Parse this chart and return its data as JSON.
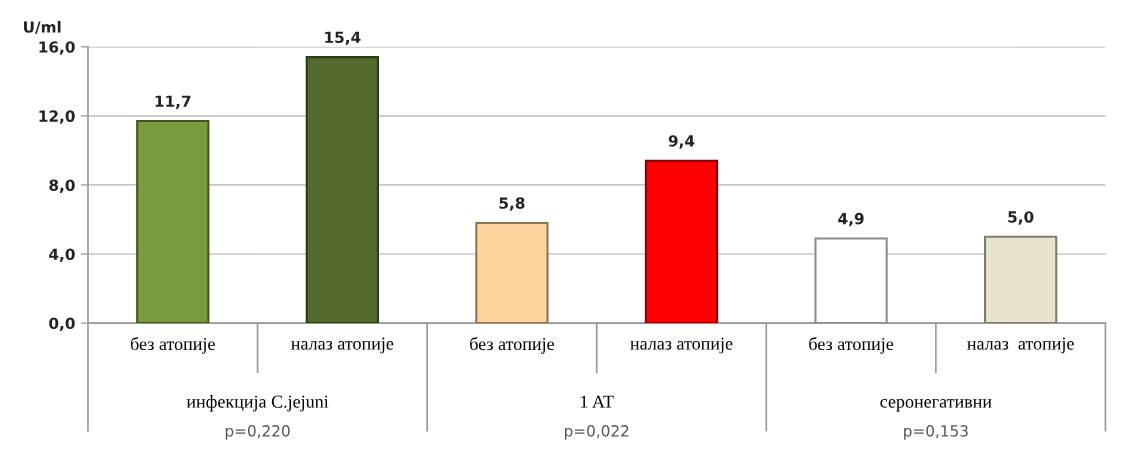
{
  "chart_data": {
    "type": "bar",
    "ylabel": "U/ml",
    "categories": [
      "без атопије",
      "налаз атопије",
      "без атопије",
      "налаз атопије",
      "без атопије",
      "налаз  атопије"
    ],
    "values": [
      11.7,
      15.4,
      5.8,
      9.4,
      4.9,
      5.0
    ],
    "value_labels": [
      "11,7",
      "15,4",
      "5,8",
      "9,4",
      "4,9",
      "5,0"
    ],
    "colors": [
      "#7a9a3e",
      "#546b2c",
      "#fdd49e",
      "#ff0000",
      "#ffffff",
      "#e8e4cc"
    ],
    "ylim": [
      0,
      16
    ],
    "yticks": [
      {
        "value": 0,
        "label": "0,0"
      },
      {
        "value": 4,
        "label": "4,0"
      },
      {
        "value": 8,
        "label": "8,0"
      },
      {
        "value": 12,
        "label": "12,0"
      },
      {
        "value": 16,
        "label": "16,0"
      }
    ],
    "grid": "y",
    "annotations": [
      "инфекција C.jejuni",
      "p=0,220",
      "1 AT",
      "p=0,022",
      "серонегативни",
      "p=0,153"
    ]
  }
}
